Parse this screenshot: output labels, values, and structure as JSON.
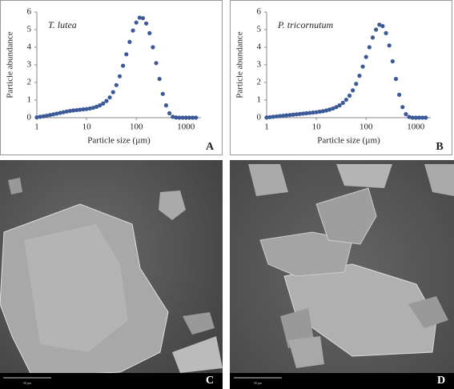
{
  "chart_data": [
    {
      "type": "scatter",
      "annotation": "T. lutea",
      "panel_label": "A",
      "xlabel": "Particle size (µm)",
      "ylabel": "Particle abundance",
      "xscale": "log",
      "xlim": [
        1,
        2000
      ],
      "xticks": [
        1,
        10,
        100,
        1000
      ],
      "ylim": [
        0,
        6
      ],
      "yticks": [
        0,
        1,
        2,
        3,
        4,
        5,
        6
      ],
      "color": "#3d5a98",
      "x": [
        1,
        1.166,
        1.359,
        1.585,
        1.848,
        2.154,
        2.512,
        2.929,
        3.415,
        3.981,
        4.642,
        5.412,
        6.31,
        7.356,
        8.577,
        10,
        11.66,
        13.59,
        15.85,
        18.48,
        21.54,
        25.12,
        29.29,
        34.15,
        39.81,
        46.42,
        54.12,
        63.1,
        73.56,
        85.77,
        100,
        116.6,
        135.9,
        158.5,
        184.8,
        215.4,
        251.2,
        292.9,
        341.5,
        398.1,
        464.2,
        541.2,
        631,
        735.6,
        857.7,
        1000,
        1166,
        1359,
        1585
      ],
      "values": [
        0.02,
        0.05,
        0.08,
        0.11,
        0.15,
        0.19,
        0.23,
        0.27,
        0.31,
        0.35,
        0.38,
        0.41,
        0.43,
        0.45,
        0.47,
        0.49,
        0.52,
        0.56,
        0.62,
        0.7,
        0.8,
        0.95,
        1.15,
        1.45,
        1.85,
        2.35,
        2.95,
        3.6,
        4.3,
        4.95,
        5.4,
        5.68,
        5.65,
        5.35,
        4.8,
        4.0,
        3.1,
        2.2,
        1.35,
        0.7,
        0.25,
        0.05,
        0.01,
        0,
        0,
        0,
        0,
        0,
        0
      ]
    },
    {
      "type": "scatter",
      "annotation": "P. tricornutum",
      "panel_label": "B",
      "xlabel": "Particle size (µm)",
      "ylabel": "Particle abundance",
      "xscale": "log",
      "xlim": [
        1,
        2000
      ],
      "xticks": [
        1,
        10,
        100,
        1000
      ],
      "ylim": [
        0,
        6
      ],
      "yticks": [
        0,
        1,
        2,
        3,
        4,
        5,
        6
      ],
      "color": "#3d5a98",
      "x": [
        1,
        1.166,
        1.359,
        1.585,
        1.848,
        2.154,
        2.512,
        2.929,
        3.415,
        3.981,
        4.642,
        5.412,
        6.31,
        7.356,
        8.577,
        10,
        11.66,
        13.59,
        15.85,
        18.48,
        21.54,
        25.12,
        29.29,
        34.15,
        39.81,
        46.42,
        54.12,
        63.1,
        73.56,
        85.77,
        100,
        116.6,
        135.9,
        158.5,
        184.8,
        215.4,
        251.2,
        292.9,
        341.5,
        398.1,
        464.2,
        541.2,
        631,
        735.6,
        857.7,
        1000,
        1166,
        1359,
        1585
      ],
      "values": [
        0.01,
        0.03,
        0.05,
        0.07,
        0.09,
        0.11,
        0.13,
        0.15,
        0.17,
        0.19,
        0.21,
        0.23,
        0.25,
        0.27,
        0.29,
        0.31,
        0.34,
        0.37,
        0.41,
        0.46,
        0.52,
        0.6,
        0.7,
        0.84,
        1.02,
        1.25,
        1.55,
        1.92,
        2.38,
        2.9,
        3.45,
        4.0,
        4.55,
        5.0,
        5.28,
        5.2,
        4.8,
        4.1,
        3.2,
        2.2,
        1.3,
        0.6,
        0.2,
        0.04,
        0,
        0,
        0,
        0,
        0
      ]
    }
  ],
  "images": [
    {
      "panel_label": "C",
      "scale_bar": "30 µm"
    },
    {
      "panel_label": "D",
      "scale_bar": "30 µm"
    }
  ]
}
